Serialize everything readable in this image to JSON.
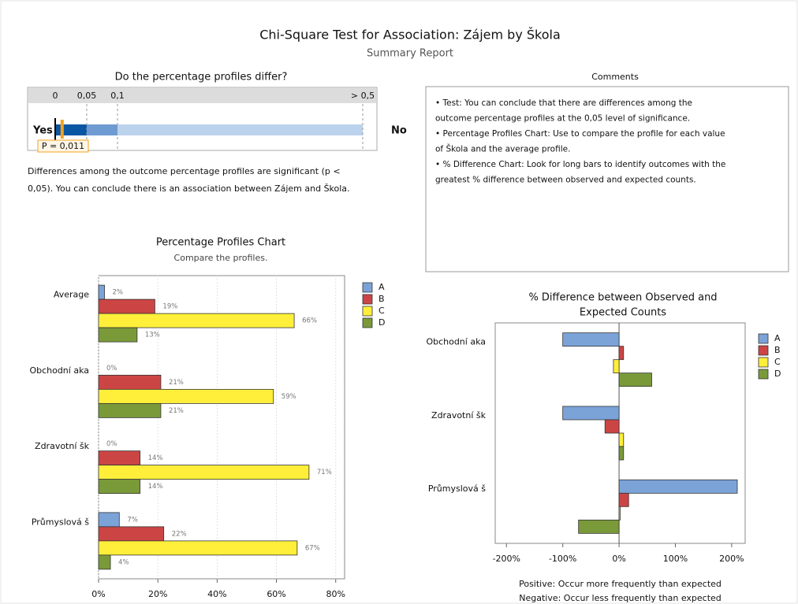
{
  "header": {
    "title": "Chi-Square Test for Association: Zájem by Škola",
    "subtitle": "Summary Report"
  },
  "gauge": {
    "title": "Do the percentage profiles differ?",
    "ticks": [
      0,
      {
        "value": 0.05,
        "label": "0,05"
      },
      {
        "value": 0.1,
        "label": "0,1"
      },
      {
        "value": 0.5,
        "label": "> 0,5"
      }
    ],
    "left_label": "Yes",
    "right_label": "No",
    "p_value": {
      "value": 0.011,
      "label": "P = 0,011"
    }
  },
  "conclusion": [
    "Differences among the outcome percentage profiles are significant (p <",
    "0,05). You can conclude there is an association between Zájem and Škola."
  ],
  "comments": {
    "title": "Comments",
    "lines": [
      "•  Test: You can conclude that there are differences among the",
      "outcome percentage profiles at the 0,05 level of significance.",
      "•  Percentage Profiles Chart: Use to compare the profile for each value",
      "of Škola and the average profile.",
      "•  % Difference Chart: Look for long bars to identify outcomes with the",
      "greatest % difference between observed and expected counts."
    ]
  },
  "chart_data": [
    {
      "type": "hbar",
      "title": "Percentage Profiles Chart",
      "subtitle": "Compare the profiles.",
      "categories": [
        "Average",
        "Obchodní aka",
        "Zdravotní šk",
        "Průmyslová š"
      ],
      "series": [
        {
          "name": "A",
          "color": "#7ba3d8",
          "values": [
            2,
            0,
            0,
            7
          ],
          "value_labels": [
            "2%",
            "0%",
            "0%",
            "7%"
          ]
        },
        {
          "name": "B",
          "color": "#cc4545",
          "values": [
            19,
            21,
            14,
            22
          ],
          "value_labels": [
            "19%",
            "21%",
            "14%",
            "22%"
          ]
        },
        {
          "name": "C",
          "color": "#ffef3a",
          "values": [
            66,
            59,
            71,
            67
          ],
          "value_labels": [
            "66%",
            "59%",
            "71%",
            "67%"
          ]
        },
        {
          "name": "D",
          "color": "#7a9a3a",
          "values": [
            13,
            21,
            14,
            4
          ],
          "value_labels": [
            "13%",
            "21%",
            "14%",
            "4%"
          ]
        }
      ],
      "xlim": [
        0,
        83
      ],
      "xticks": [
        {
          "value": 0,
          "label": "0%"
        },
        {
          "value": 20,
          "label": "20%"
        },
        {
          "value": 40,
          "label": "40%"
        },
        {
          "value": 60,
          "label": "60%"
        },
        {
          "value": 80,
          "label": "80%"
        }
      ],
      "grid": true
    },
    {
      "type": "hbar",
      "title": [
        "% Difference between Observed and",
        "Expected Counts"
      ],
      "categories": [
        "Obchodní aka",
        "Zdravotní šk",
        "Průmyslová š"
      ],
      "series": [
        {
          "name": "A",
          "color": "#7ba3d8",
          "values": [
            -100,
            -100,
            210
          ]
        },
        {
          "name": "B",
          "color": "#cc4545",
          "values": [
            8,
            -25,
            17
          ]
        },
        {
          "name": "C",
          "color": "#ffef3a",
          "values": [
            -10,
            8,
            2
          ]
        },
        {
          "name": "D",
          "color": "#7a9a3a",
          "values": [
            58,
            8,
            -72
          ]
        }
      ],
      "xlim": [
        -220,
        224
      ],
      "xticks": [
        {
          "value": -200,
          "label": "-200%"
        },
        {
          "value": -100,
          "label": "-100%"
        },
        {
          "value": 0,
          "label": "0%"
        },
        {
          "value": 100,
          "label": "100%"
        },
        {
          "value": 200,
          "label": "200%"
        }
      ],
      "grid": false,
      "notes": [
        "Positive: Occur more frequently than expected",
        "Negative: Occur less frequently than expected"
      ]
    }
  ]
}
